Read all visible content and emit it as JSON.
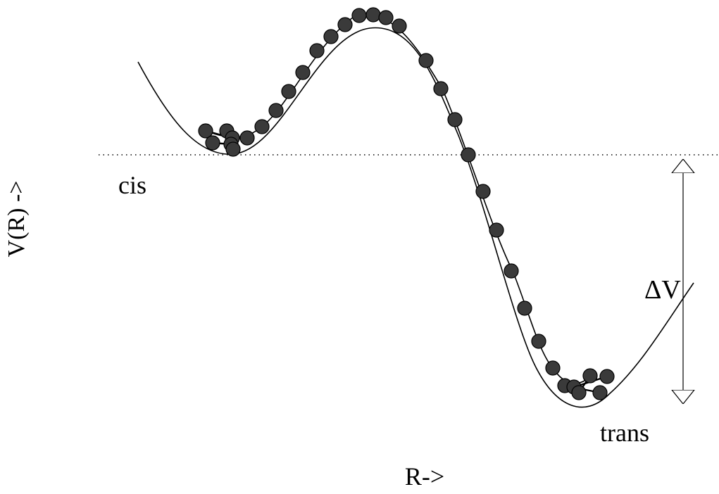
{
  "diagram": {
    "y_axis_label": "V(R) ->",
    "x_axis_label": "R->",
    "left_state_label": "cis",
    "right_state_label": "trans",
    "energy_gap_label": "ΔV"
  },
  "colors": {
    "background": "#ffffff",
    "line": "#000000",
    "bead_fill": "#3a3a3a"
  }
}
